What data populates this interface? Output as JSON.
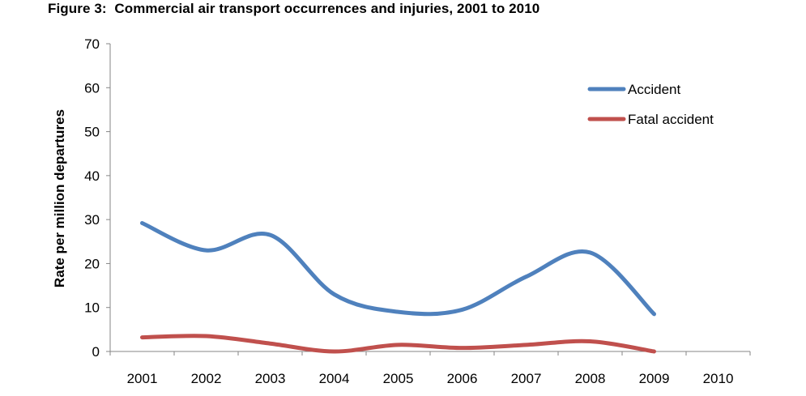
{
  "chart_data": {
    "type": "line",
    "title": "Figure 3:  Commercial air transport occurrences and injuries, 2001 to 2010",
    "xlabel": "",
    "ylabel": "Rate per million departures",
    "categories": [
      "2001",
      "2002",
      "2003",
      "2004",
      "2005",
      "2006",
      "2007",
      "2008",
      "2009",
      "2010"
    ],
    "ylim": [
      0,
      70
    ],
    "yticks": [
      0,
      10,
      20,
      30,
      40,
      50,
      60,
      70
    ],
    "grid": false,
    "smooth": true,
    "legend_position": "top-right",
    "series": [
      {
        "name": "Accident",
        "color": "#4F81BD",
        "values": [
          29.2,
          23.0,
          26.5,
          13.0,
          9.0,
          9.5,
          17.0,
          22.5,
          8.5,
          null
        ]
      },
      {
        "name": "Fatal accident",
        "color": "#C0504D",
        "values": [
          3.2,
          3.5,
          1.8,
          0.0,
          1.5,
          0.8,
          1.5,
          2.3,
          0.0,
          null
        ]
      }
    ]
  }
}
